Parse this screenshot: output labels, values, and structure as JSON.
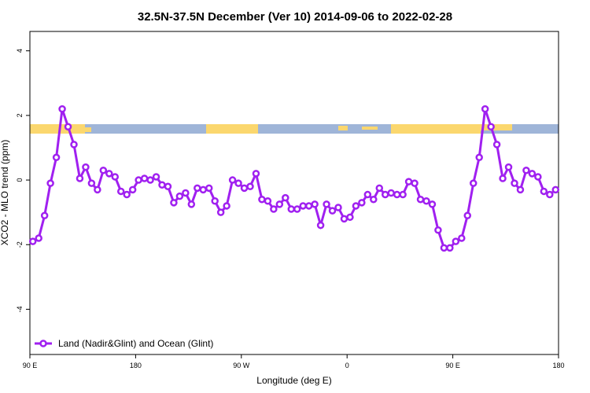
{
  "chart_data": {
    "type": "line",
    "title": "32.5N-37.5N December (Ver 10)   2014-09-06 to 2022-02-28",
    "x_label": "Longitude (deg E)",
    "y_label": "XCO2 - MLO trend (ppm)",
    "xlim": [
      90,
      540
    ],
    "ylim": [
      -5.4,
      4.6
    ],
    "xticks": [
      {
        "value": 90,
        "label": "90 E"
      },
      180,
      {
        "value": 270,
        "label": "90 W"
      },
      {
        "value": 360,
        "label": "0"
      },
      {
        "value": 450,
        "label": "90 E"
      },
      {
        "value": 540,
        "label": "180"
      }
    ],
    "yticks": [
      -4,
      -2,
      0,
      2,
      4
    ],
    "legend_position": "bottom-left",
    "x": [
      92.5,
      97.5,
      102.5,
      107.5,
      112.5,
      117.5,
      122.5,
      127.5,
      132.5,
      137.5,
      142.5,
      147.5,
      152.5,
      157.5,
      162.5,
      167.5,
      172.5,
      177.5,
      182.5,
      187.5,
      192.5,
      197.5,
      202.5,
      207.5,
      212.5,
      217.5,
      222.5,
      227.5,
      232.5,
      237.5,
      242.5,
      247.5,
      252.5,
      257.5,
      262.5,
      267.5,
      272.5,
      277.5,
      282.5,
      287.5,
      292.5,
      297.5,
      302.5,
      307.5,
      312.5,
      317.5,
      322.5,
      327.5,
      332.5,
      337.5,
      342.5,
      347.5,
      352.5,
      357.5,
      362.5,
      367.5,
      372.5,
      377.5,
      382.5,
      387.5,
      392.5,
      397.5,
      402.5,
      407.5,
      412.5,
      417.5,
      422.5,
      427.5,
      432.5,
      437.5,
      442.5,
      447.5,
      452.5,
      457.5,
      462.5,
      467.5,
      472.5,
      477.5,
      482.5,
      487.5,
      492.5,
      497.5,
      502.5,
      507.5,
      512.5,
      517.5,
      522.5,
      527.5,
      532.5,
      537.5
    ],
    "series": [
      {
        "name": "Land (Nadir&Glint) and Ocean (Glint)",
        "color": "#a020f0",
        "values": [
          -1.9,
          -1.8,
          -1.1,
          -0.1,
          0.7,
          2.2,
          1.65,
          1.1,
          0.05,
          0.4,
          -0.1,
          -0.3,
          0.3,
          0.2,
          0.1,
          -0.35,
          -0.45,
          -0.3,
          0.0,
          0.05,
          0.0,
          0.1,
          -0.15,
          -0.2,
          -0.7,
          -0.5,
          -0.4,
          -0.75,
          -0.25,
          -0.3,
          -0.25,
          -0.65,
          -1.0,
          -0.8,
          0.0,
          -0.1,
          -0.25,
          -0.2,
          0.2,
          -0.6,
          -0.65,
          -0.9,
          -0.75,
          -0.55,
          -0.9,
          -0.9,
          -0.8,
          -0.8,
          -0.75,
          -1.4,
          -0.75,
          -0.95,
          -0.85,
          -1.2,
          -1.15,
          -0.8,
          -0.7,
          -0.45,
          -0.6,
          -0.25,
          -0.45,
          -0.4,
          -0.45,
          -0.45,
          -0.05,
          -0.1,
          -0.6,
          -0.65,
          -0.75,
          -1.55,
          -2.1,
          -2.1,
          -1.9,
          -1.8,
          -1.1,
          -0.1,
          0.7,
          2.2,
          1.65,
          1.1,
          0.05,
          0.4,
          -0.1,
          -0.3,
          0.3,
          0.2,
          0.1,
          -0.35,
          -0.45,
          -0.3
        ]
      }
    ]
  }
}
